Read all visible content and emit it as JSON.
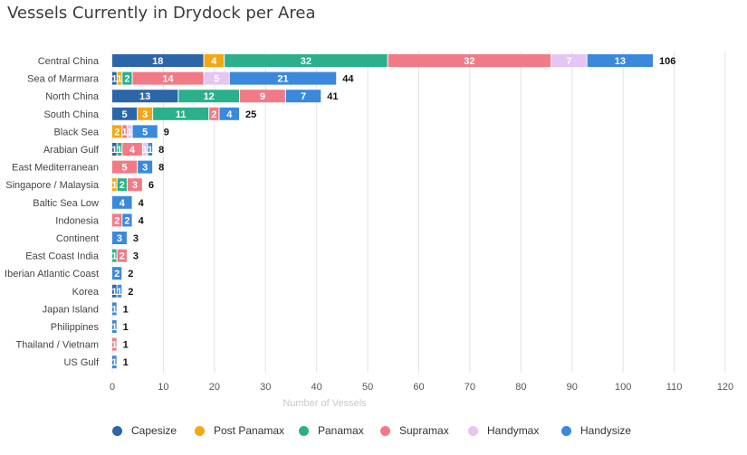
{
  "chart_data": {
    "type": "bar",
    "orientation": "horizontal",
    "stacked": true,
    "title": "Vessels Currently in Drydock per Area",
    "xlabel": "Number of Vessels",
    "ylabel": "",
    "xlim": [
      0,
      120
    ],
    "xticks": [
      0,
      10,
      20,
      30,
      40,
      50,
      60,
      70,
      80,
      90,
      100,
      110,
      120
    ],
    "grid": true,
    "legend_position": "bottom",
    "categories": [
      "Central China",
      "Sea of Marmara",
      "North China",
      "South China",
      "Black Sea",
      "Arabian Gulf",
      "East Mediterranean",
      "Singapore / Malaysia",
      "Baltic Sea Low",
      "Indonesia",
      "Continent",
      "East Coast India",
      "Iberian Atlantic Coast",
      "Korea",
      "Japan Island",
      "Philippines",
      "Thailand / Vietnam",
      "US Gulf"
    ],
    "series": [
      {
        "name": "Capesize",
        "color": "#2b66a8",
        "values": [
          18,
          1,
          13,
          5,
          0,
          1,
          0,
          0,
          0,
          0,
          0,
          0,
          0,
          1,
          0,
          0,
          0,
          0
        ]
      },
      {
        "name": "Post Panamax",
        "color": "#f3a712",
        "values": [
          4,
          1,
          0,
          3,
          2,
          0,
          0,
          1,
          0,
          0,
          0,
          0,
          0,
          0,
          0,
          0,
          0,
          0
        ]
      },
      {
        "name": "Panamax",
        "color": "#2bb08b",
        "values": [
          32,
          2,
          12,
          11,
          0,
          1,
          0,
          2,
          0,
          0,
          0,
          1,
          0,
          0,
          0,
          0,
          0,
          0
        ]
      },
      {
        "name": "Supramax",
        "color": "#f27a86",
        "values": [
          32,
          14,
          9,
          2,
          1,
          4,
          5,
          3,
          0,
          2,
          0,
          2,
          0,
          0,
          0,
          0,
          1,
          0
        ]
      },
      {
        "name": "Handymax",
        "color": "#e4c5f3",
        "values": [
          7,
          5,
          0,
          0,
          1,
          1,
          0,
          0,
          0,
          0,
          0,
          0,
          0,
          0,
          0,
          0,
          0,
          0
        ]
      },
      {
        "name": "Handysize",
        "color": "#3a89dc",
        "values": [
          13,
          21,
          7,
          4,
          5,
          1,
          3,
          0,
          4,
          2,
          3,
          0,
          2,
          1,
          1,
          1,
          0,
          1
        ]
      }
    ],
    "totals": [
      106,
      44,
      41,
      25,
      9,
      8,
      8,
      6,
      4,
      4,
      3,
      3,
      2,
      2,
      1,
      1,
      1,
      1
    ]
  }
}
